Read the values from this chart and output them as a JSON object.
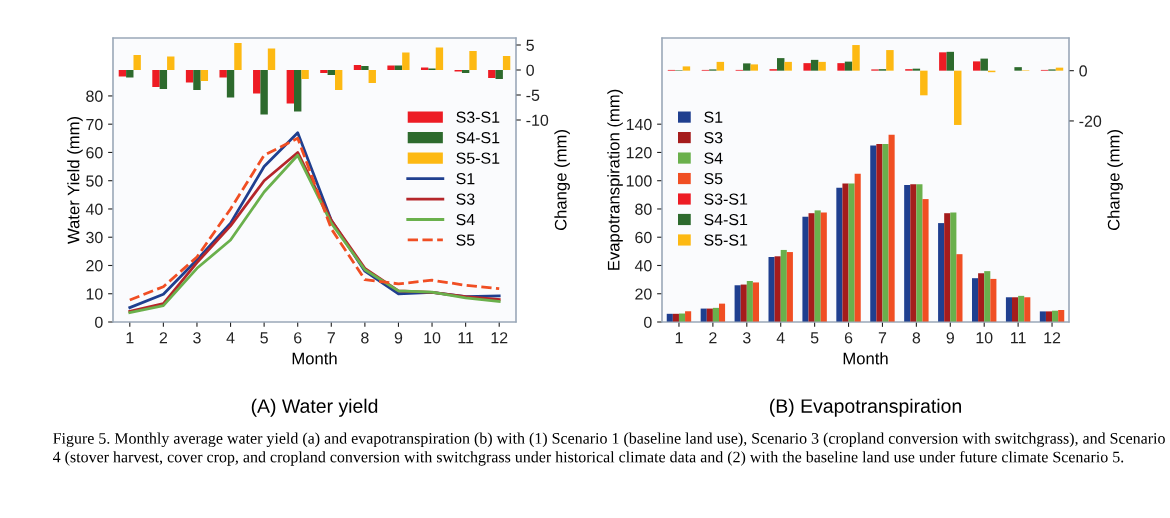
{
  "chart_data": [
    {
      "type": "line",
      "title": "(A) Water yield",
      "xlabel": "Month",
      "ylabel": "Water Yield (mm)",
      "y2label": "Change (mm)",
      "categories": [
        "1",
        "2",
        "3",
        "4",
        "5",
        "6",
        "7",
        "8",
        "9",
        "10",
        "11",
        "12"
      ],
      "ylim": [
        0,
        100.5
      ],
      "yticks": [
        0,
        10,
        20,
        30,
        40,
        50,
        60,
        70,
        80
      ],
      "y2lim": [
        -50.4,
        6.4
      ],
      "y2ticks": [
        5,
        0,
        {
          "value": -5,
          "label": "-5"
        },
        {
          "value": -10,
          "label": "-10"
        }
      ],
      "legend": "center right",
      "annotations": [
        "Figure 5. Monthly average water yield (a) and evapotranspiration (b) with (1) Scenario 1 (baseline land use), Scenario 3 (cropland conversion with switchgrass), and Scenario 4 (stover harvest, cover crop, and cropland conversion with switchgrass under historical climate data and (2) with the baseline land use under future climate Scenario 5."
      ],
      "series": [
        {
          "name": "S3-S1",
          "type": "bar",
          "axis": "y2",
          "color": "#ed1c24",
          "values": [
            -1.3,
            -3.4,
            -2.5,
            -1.5,
            -4.7,
            -6.7,
            -0.6,
            1.0,
            0.9,
            0.5,
            -0.3,
            -1.6
          ]
        },
        {
          "name": "S4-S1",
          "type": "bar",
          "axis": "y2",
          "color": "#2d6a2d",
          "values": [
            -1.5,
            -3.8,
            -4.0,
            -5.5,
            -8.9,
            -8.3,
            -1.0,
            0.8,
            0.9,
            0.3,
            -0.6,
            -1.8
          ]
        },
        {
          "name": "S5-S1",
          "type": "bar",
          "axis": "y2",
          "color": "#fdb913",
          "values": [
            3.0,
            2.7,
            -2.2,
            5.4,
            4.3,
            -1.8,
            -4.0,
            -2.6,
            3.5,
            4.5,
            3.8,
            2.8
          ]
        },
        {
          "name": "S1",
          "type": "line",
          "color": "#1f3f8f",
          "line_style": "solid",
          "values": [
            5.1,
            9.8,
            22,
            35,
            55,
            67,
            36,
            18,
            10,
            10.5,
            9,
            9.2
          ]
        },
        {
          "name": "S3",
          "type": "line",
          "color": "#b5262a",
          "line_style": "solid",
          "values": [
            3.8,
            6.5,
            21,
            34,
            50,
            60,
            36,
            19,
            11,
            10.5,
            9,
            8
          ]
        },
        {
          "name": "S4",
          "type": "line",
          "color": "#6ab04c",
          "line_style": "solid",
          "values": [
            3.3,
            5.8,
            19,
            29,
            46,
            59,
            35,
            18.5,
            11,
            10.6,
            8.5,
            7.3
          ]
        },
        {
          "name": "S5",
          "type": "line",
          "color": "#f04e23",
          "line_style": "dashed",
          "values": [
            7.8,
            12.5,
            23,
            40,
            59,
            65,
            33,
            15,
            13.5,
            14.8,
            13,
            11.8
          ]
        }
      ]
    },
    {
      "type": "bar",
      "title": "(B) Evapotranspiration",
      "xlabel": "Month",
      "ylabel": "Evapotranspiration (mm)",
      "y2label": "Change (mm)",
      "categories": [
        "1",
        "2",
        "3",
        "4",
        "5",
        "6",
        "7",
        "8",
        "9",
        "10",
        "11",
        "12"
      ],
      "ylim": [
        0,
        201
      ],
      "yticks": [
        0,
        20,
        40,
        60,
        80,
        100,
        120,
        140
      ],
      "y2lim": [
        -100,
        13
      ],
      "y2ticks": [
        0,
        {
          "value": -20,
          "label": "-20"
        }
      ],
      "legend": "center left",
      "series": [
        {
          "name": "S1",
          "type": "bar",
          "color": "#1f3f8f",
          "values": [
            5.8,
            9.5,
            26,
            46,
            74.5,
            95,
            125,
            97,
            70,
            31,
            17.5,
            7.5
          ]
        },
        {
          "name": "S3",
          "type": "bar",
          "color": "#a51c1c",
          "values": [
            5.8,
            9.5,
            26.5,
            46.5,
            77,
            98,
            126,
            97.5,
            77,
            34.5,
            17.5,
            7.5
          ]
        },
        {
          "name": "S4",
          "type": "bar",
          "color": "#6ab04c",
          "values": [
            6,
            10,
            29,
            51,
            79,
            98,
            126,
            97.5,
            77.5,
            36,
            18.5,
            8
          ]
        },
        {
          "name": "S5",
          "type": "bar",
          "color": "#f04e23",
          "values": [
            7.6,
            13,
            28,
            49.5,
            77.5,
            105,
            132.5,
            87,
            48,
            30.5,
            17.5,
            8.5
          ]
        },
        {
          "name": "S3-S1",
          "type": "bar",
          "axis": "y2",
          "color": "#ed1c24",
          "values": [
            0.3,
            0.3,
            0.3,
            0.6,
            3.0,
            3.0,
            0.5,
            0.6,
            7.3,
            3.7,
            0,
            0.3
          ]
        },
        {
          "name": "S4-S1",
          "type": "bar",
          "axis": "y2",
          "color": "#2d6a2d",
          "values": [
            0.2,
            0.5,
            2.9,
            5.0,
            4.3,
            3.6,
            0.6,
            0.8,
            7.5,
            4.8,
            1.4,
            0.5
          ]
        },
        {
          "name": "S5-S1",
          "type": "bar",
          "axis": "y2",
          "color": "#fdb913",
          "values": [
            1.7,
            3.5,
            2.5,
            3.5,
            3.5,
            10.2,
            8.2,
            -9.8,
            -21.6,
            -0.6,
            0.2,
            1.2
          ]
        }
      ]
    }
  ]
}
